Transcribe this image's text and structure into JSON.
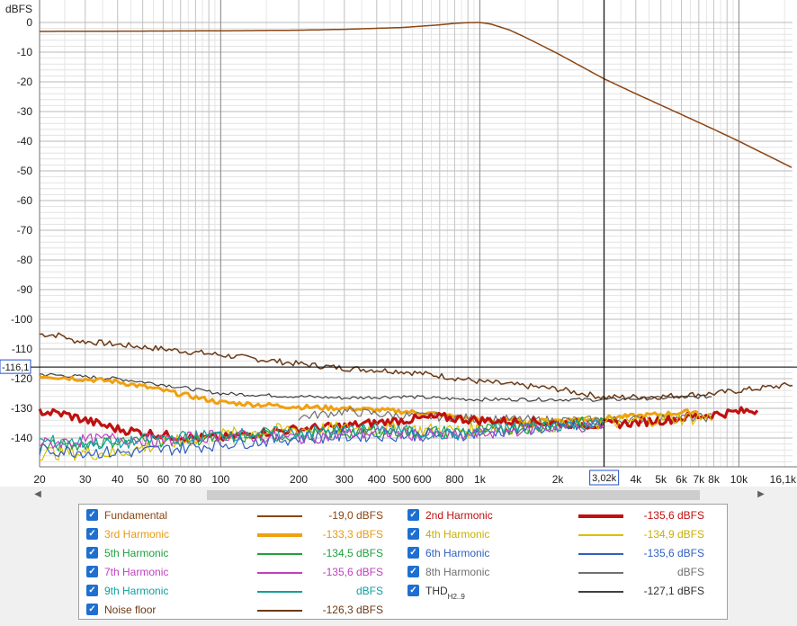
{
  "chart_data": {
    "type": "line",
    "ylabel": "dBFS",
    "ylim": [
      -150,
      0
    ],
    "xlim": [
      20,
      16100
    ],
    "x_scale": "log",
    "grid": true,
    "y_ticks": [
      0,
      -10,
      -20,
      -30,
      -40,
      -50,
      -60,
      -70,
      -80,
      -90,
      -100,
      -110,
      -120,
      -130,
      -140
    ],
    "y_tick_labels": [
      "0",
      "-10",
      "-20",
      "-30",
      "-40",
      "-50",
      "-60",
      "-70",
      "-80",
      "-90",
      "-100",
      "-110",
      "-120",
      "-130",
      "-140"
    ],
    "x_ticks": [
      20,
      30,
      40,
      50,
      60,
      70,
      80,
      100,
      200,
      300,
      400,
      500,
      600,
      800,
      1000,
      2000,
      4000,
      5000,
      6000,
      7000,
      8000,
      10000,
      16100
    ],
    "x_tick_labels": [
      "20",
      "30",
      "40",
      "50",
      "60",
      "70",
      "80",
      "100",
      "200",
      "300",
      "400",
      "500",
      "600",
      "800",
      "1k",
      "2k",
      "4k",
      "5k",
      "6k",
      "7k",
      "8k",
      "10k",
      "16,1k"
    ],
    "cursor": {
      "x": 3020,
      "x_label": "3,02k",
      "y": -116.1,
      "y_label": "-116,1"
    },
    "series": [
      {
        "name": "Fundamental",
        "color": "#8b4513",
        "width": 1.5,
        "x": [
          20,
          50,
          100,
          200,
          300,
          500,
          700,
          800,
          900,
          1000,
          1100,
          1300,
          1500,
          2000,
          3020,
          4000,
          6000,
          8000,
          10000,
          16100
        ],
        "values": [
          -3.0,
          -2.9,
          -2.8,
          -2.6,
          -2.3,
          -1.7,
          -0.8,
          -0.3,
          -0.05,
          0,
          -0.5,
          -2.5,
          -5.0,
          -10.5,
          -19.0,
          -24.0,
          -31.0,
          -36.0,
          -40.0,
          -49.0
        ]
      },
      {
        "name": "Noise floor",
        "color": "#6b3a16",
        "width": 1.5,
        "noise": 1.0,
        "x": [
          20,
          25,
          26,
          35,
          60,
          100,
          200,
          300,
          500,
          700,
          1000,
          2000,
          3020,
          5000,
          8000,
          10000,
          16100
        ],
        "values": [
          -105,
          -105.5,
          -107,
          -108,
          -110,
          -112,
          -115,
          -116.5,
          -117.5,
          -119,
          -121,
          -123.5,
          -126.3,
          -126,
          -125,
          -124,
          -122
        ]
      },
      {
        "name": "THD_H2..9",
        "color": "#404040",
        "width": 1.2,
        "noise": 0.6,
        "x": [
          20,
          40,
          60,
          100,
          200,
          300,
          500,
          800,
          1000,
          2000,
          3020,
          5000,
          8000
        ],
        "values": [
          -118.5,
          -120,
          -122,
          -125,
          -126,
          -126.5,
          -126,
          -126.8,
          -127,
          -127,
          -127.1,
          -126.5,
          -126
        ]
      },
      {
        "name": "3rd Harmonic",
        "color": "#f0a010",
        "width": 3,
        "noise": 0.8,
        "x": [
          20,
          40,
          60,
          100,
          200,
          300,
          500,
          700,
          1000,
          1500,
          2000,
          3020,
          5000,
          7000
        ],
        "values": [
          -119,
          -121,
          -124,
          -128,
          -129.5,
          -130,
          -131,
          -132,
          -134,
          -134.5,
          -134,
          -133.3,
          -132,
          -131
        ]
      },
      {
        "name": "8th Harmonic",
        "color": "#707070",
        "width": 1.2,
        "noise": 1.5,
        "x": [
          200,
          300,
          500,
          800,
          1000,
          2000,
          3020,
          5000,
          8000
        ],
        "values": [
          -133,
          -131,
          -132.5,
          -133,
          -133.5,
          -134,
          -134,
          -133.5,
          -133
        ]
      },
      {
        "name": "2nd Harmonic",
        "color": "#c01010",
        "width": 3.2,
        "noise": 1.5,
        "x": [
          20,
          25,
          30,
          40,
          60,
          80,
          100,
          150,
          200,
          300,
          500,
          700,
          1000,
          2000,
          3020,
          5000,
          8000,
          12000
        ],
        "values": [
          -131,
          -132,
          -134,
          -137,
          -139,
          -140,
          -140,
          -138,
          -137,
          -136,
          -134,
          -133,
          -134,
          -135,
          -135.6,
          -134,
          -132,
          -130.5
        ]
      },
      {
        "name": "4th Harmonic",
        "color": "#d8c000",
        "width": 1.2,
        "noise": 2.5,
        "x": [
          20,
          40,
          60,
          100,
          200,
          400,
          800,
          1500,
          3020,
          5000,
          8000
        ],
        "values": [
          -145,
          -145,
          -142,
          -139,
          -137,
          -137,
          -137.5,
          -136,
          -134.9,
          -133.5,
          -133
        ]
      },
      {
        "name": "5th Harmonic",
        "color": "#20a040",
        "width": 1.2,
        "noise": 2.2,
        "x": [
          20,
          40,
          60,
          100,
          200,
          400,
          800,
          1500,
          3020
        ],
        "values": [
          -143,
          -141,
          -141,
          -140,
          -139,
          -137.5,
          -138,
          -136.5,
          -134.5
        ]
      },
      {
        "name": "6th Harmonic",
        "color": "#3060c0",
        "width": 1.2,
        "noise": 2.2,
        "x": [
          20,
          40,
          60,
          100,
          200,
          400,
          800,
          1500,
          3020
        ],
        "values": [
          -144,
          -145,
          -144,
          -142,
          -140,
          -139,
          -139,
          -137,
          -135.6
        ]
      },
      {
        "name": "7th Harmonic",
        "color": "#c040c0",
        "width": 1.2,
        "noise": 2.2,
        "x": [
          20,
          40,
          60,
          100,
          200,
          400,
          800,
          1500,
          3020
        ],
        "values": [
          -142,
          -140,
          -141,
          -139,
          -140,
          -138,
          -139.5,
          -137,
          -135.6
        ]
      },
      {
        "name": "9th Harmonic",
        "color": "#10a0a0",
        "width": 1.2,
        "noise": 2.2,
        "x": [
          20,
          40,
          60,
          100,
          200,
          400,
          800,
          1500,
          3020
        ],
        "values": [
          -141,
          -142,
          -140,
          -139,
          -138,
          -137,
          -139,
          -136,
          -135
        ]
      }
    ]
  },
  "legend": [
    {
      "name": "Fundamental",
      "value": "-19,0 dBFS",
      "color": "#8b4513",
      "width": 2,
      "checked": true
    },
    {
      "name": "2nd Harmonic",
      "value": "-135,6 dBFS",
      "color": "#c01010",
      "width": 4,
      "checked": true
    },
    {
      "name": "3rd Harmonic",
      "value": "-133,3 dBFS",
      "color": "#f0a010",
      "width": 4,
      "checked": true
    },
    {
      "name": "4th Harmonic",
      "value": "-134,9 dBFS",
      "color": "#d8c000",
      "width": 2,
      "checked": true
    },
    {
      "name": "5th Harmonic",
      "value": "-134,5 dBFS",
      "color": "#20a040",
      "width": 2,
      "checked": true
    },
    {
      "name": "6th Harmonic",
      "value": "-135,6 dBFS",
      "color": "#3060c0",
      "width": 2,
      "checked": true
    },
    {
      "name": "7th Harmonic",
      "value": "-135,6 dBFS",
      "color": "#c040c0",
      "width": 2,
      "checked": true
    },
    {
      "name": "8th Harmonic",
      "value": "dBFS",
      "color": "#707070",
      "width": 2,
      "checked": true
    },
    {
      "name": "9th Harmonic",
      "value": "dBFS",
      "color": "#10a0a0",
      "width": 2,
      "checked": true
    },
    {
      "name": "THD",
      "sub": "H2..9",
      "value": "-127,1 dBFS",
      "color": "#404040",
      "width": 2,
      "checked": true
    },
    {
      "name": "Noise floor",
      "value": "-126,3 dBFS",
      "color": "#6b3a16",
      "width": 2,
      "checked": true
    }
  ],
  "scrollbar": {
    "left_arrow": "◀",
    "right_arrow": "▶"
  }
}
